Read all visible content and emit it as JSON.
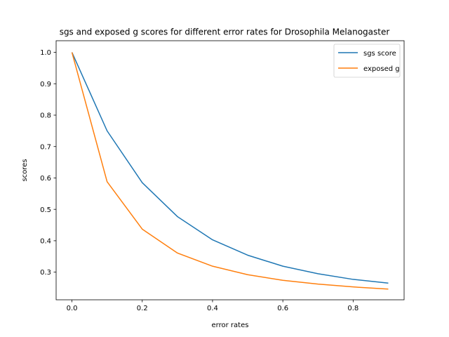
{
  "chart_data": {
    "type": "line",
    "title": "sgs and exposed g scores for different error rates for Drosophila Melanogaster",
    "xlabel": "error rates",
    "ylabel": "scores",
    "x": [
      0.0,
      0.1,
      0.2,
      0.3,
      0.4,
      0.5,
      0.6,
      0.7,
      0.8,
      0.9
    ],
    "xlim": [
      -0.045,
      0.945
    ],
    "ylim": [
      0.212,
      1.037
    ],
    "xticks": [
      0.0,
      0.2,
      0.4,
      0.6,
      0.8
    ],
    "xtick_labels": [
      "0.0",
      "0.2",
      "0.4",
      "0.6",
      "0.8"
    ],
    "yticks": [
      0.3,
      0.4,
      0.5,
      0.6,
      0.7,
      0.8,
      0.9,
      1.0
    ],
    "ytick_labels": [
      "0.3",
      "0.4",
      "0.5",
      "0.6",
      "0.7",
      "0.8",
      "0.9",
      "1.0"
    ],
    "grid": false,
    "legend_position": "top-right",
    "series": [
      {
        "name": "sgs score",
        "color": "#1f77b4",
        "values": [
          1.0,
          0.75,
          0.585,
          0.477,
          0.403,
          0.354,
          0.319,
          0.295,
          0.277,
          0.265
        ]
      },
      {
        "name": "exposed g",
        "color": "#ff7f0e",
        "values": [
          1.0,
          0.588,
          0.437,
          0.361,
          0.319,
          0.292,
          0.274,
          0.262,
          0.253,
          0.246
        ]
      }
    ]
  }
}
